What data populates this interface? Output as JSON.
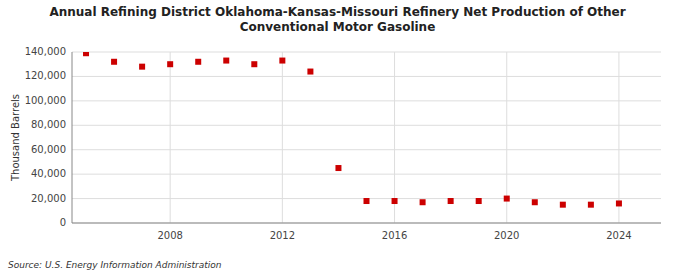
{
  "chart_data": {
    "type": "scatter",
    "title": "Annual Refining District Oklahoma-Kansas-Missouri Refinery Net Production of Other\nConventional Motor Gasoline",
    "y_label": "Thousand Barrels",
    "source": "Source: U.S. Energy Information Administration",
    "x": [
      2005,
      2006,
      2007,
      2008,
      2009,
      2010,
      2011,
      2012,
      2013,
      2014,
      2015,
      2016,
      2017,
      2018,
      2019,
      2020,
      2021,
      2022,
      2023,
      2024
    ],
    "values": [
      139000,
      132000,
      128000,
      130000,
      132000,
      133000,
      130000,
      133000,
      124000,
      45000,
      18000,
      18000,
      17000,
      18000,
      18000,
      20000,
      17000,
      15000,
      15000,
      16000
    ],
    "color": "#cc0000",
    "marker": "square",
    "xlim": [
      2004.5,
      2025.5
    ],
    "xticks": [
      2008,
      2012,
      2016,
      2020,
      2024
    ],
    "ylim": [
      0,
      140000
    ],
    "yticks": [
      0,
      {
        "value": 20000,
        "label": "20,000"
      },
      {
        "value": 40000,
        "label": "40,000"
      },
      {
        "value": 60000,
        "label": "60,000"
      },
      {
        "value": 80000,
        "label": "80,000"
      },
      {
        "value": 100000,
        "label": "100,000"
      },
      {
        "value": 120000,
        "label": "120,000"
      },
      {
        "value": 140000,
        "label": "140,000"
      }
    ],
    "grid": true
  }
}
